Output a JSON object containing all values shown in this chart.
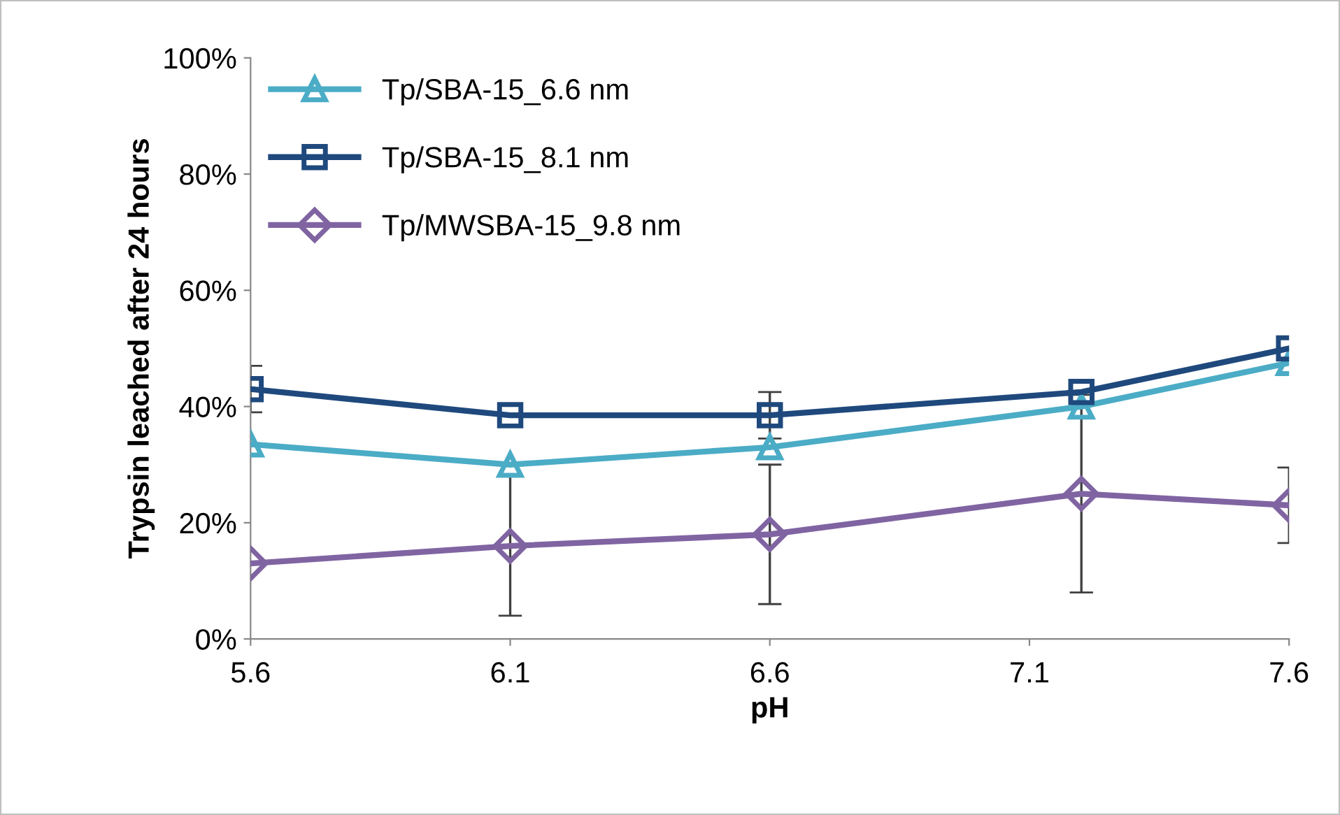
{
  "chart_data": {
    "type": "line",
    "xlabel": "pH",
    "ylabel": "Trypsin leached after 24 hours",
    "x": [
      5.6,
      6.1,
      6.6,
      7.2,
      7.6
    ],
    "series": [
      {
        "name": "Tp/SBA-15_6.6 nm",
        "color": "#4bacc6",
        "marker": "triangle",
        "values": [
          33.5,
          30,
          33,
          40,
          47.5
        ]
      },
      {
        "name": "Tp/SBA-15_8.1 nm",
        "color": "#1f497d",
        "marker": "square",
        "values": [
          43,
          38.5,
          38.5,
          42.5,
          50
        ],
        "errors": [
          4,
          null,
          4,
          null,
          null
        ]
      },
      {
        "name": "Tp/MWSBA-15_9.8 nm",
        "color": "#8064a2",
        "marker": "diamond",
        "values": [
          13,
          16,
          18,
          25,
          23
        ],
        "errors": [
          null,
          12,
          12,
          17,
          6.5
        ]
      }
    ],
    "xlim": [
      5.6,
      7.6
    ],
    "xticks": [
      5.6,
      6.1,
      6.6,
      7.1,
      7.6
    ],
    "ylim": [
      0,
      100
    ],
    "yticks": [
      {
        "value": 0,
        "label": "0%"
      },
      {
        "value": 20,
        "label": "20%"
      },
      {
        "value": 40,
        "label": "40%"
      },
      {
        "value": 60,
        "label": "60%"
      },
      {
        "value": 80,
        "label": "80%"
      },
      {
        "value": 100,
        "label": "100%"
      }
    ],
    "grid": false,
    "legend": "top left",
    "line_style": "solid"
  }
}
